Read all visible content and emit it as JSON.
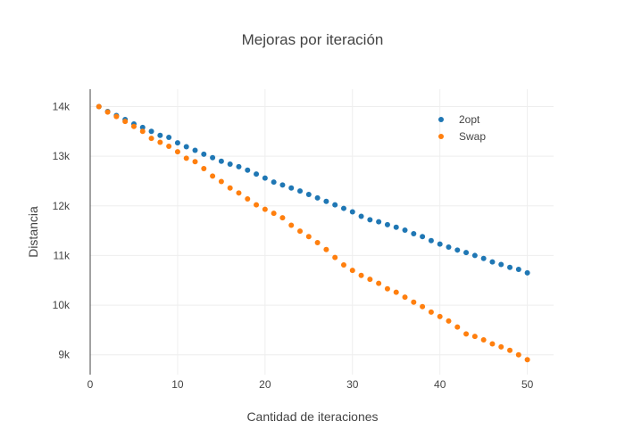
{
  "chart_data": {
    "type": "scatter",
    "title": "Mejoras por iteración",
    "xlabel": "Cantidad de iteraciones",
    "ylabel": "Distancia",
    "xlim": [
      0,
      53
    ],
    "ylim": [
      8600,
      14350
    ],
    "x_ticks": [
      0,
      10,
      20,
      30,
      40,
      50
    ],
    "x_tick_labels": [
      "0",
      "10",
      "20",
      "30",
      "40",
      "50"
    ],
    "y_ticks": [
      9000,
      10000,
      11000,
      12000,
      13000,
      14000
    ],
    "y_tick_labels": [
      "9k",
      "10k",
      "11k",
      "12k",
      "13k",
      "14k"
    ],
    "grid": true,
    "legend_position": "top-right",
    "series": [
      {
        "name": "2opt",
        "color": "#1f77b4",
        "x": [
          1,
          2,
          3,
          4,
          5,
          6,
          7,
          8,
          9,
          10,
          11,
          12,
          13,
          14,
          15,
          16,
          17,
          18,
          19,
          20,
          21,
          22,
          23,
          24,
          25,
          26,
          27,
          28,
          29,
          30,
          31,
          32,
          33,
          34,
          35,
          36,
          37,
          38,
          39,
          40,
          41,
          42,
          43,
          44,
          45,
          46,
          47,
          48,
          49,
          50
        ],
        "y": [
          14000,
          13900,
          13820,
          13740,
          13650,
          13580,
          13500,
          13420,
          13380,
          13270,
          13190,
          13120,
          13040,
          12970,
          12900,
          12840,
          12790,
          12720,
          12640,
          12560,
          12480,
          12420,
          12360,
          12300,
          12230,
          12160,
          12090,
          12020,
          11950,
          11880,
          11790,
          11720,
          11680,
          11620,
          11570,
          11510,
          11440,
          11380,
          11300,
          11230,
          11170,
          11110,
          11060,
          11000,
          10940,
          10870,
          10820,
          10760,
          10720,
          10650
        ]
      },
      {
        "name": "Swap",
        "color": "#ff7f0e",
        "x": [
          1,
          2,
          3,
          4,
          5,
          6,
          7,
          8,
          9,
          10,
          11,
          12,
          13,
          14,
          15,
          16,
          17,
          18,
          19,
          20,
          21,
          22,
          23,
          24,
          25,
          26,
          27,
          28,
          29,
          30,
          31,
          32,
          33,
          34,
          35,
          36,
          37,
          38,
          39,
          40,
          41,
          42,
          43,
          44,
          45,
          46,
          47,
          48,
          49,
          50
        ],
        "y": [
          14000,
          13890,
          13800,
          13700,
          13600,
          13500,
          13360,
          13280,
          13200,
          13090,
          12960,
          12890,
          12750,
          12600,
          12490,
          12360,
          12260,
          12140,
          12020,
          11930,
          11850,
          11760,
          11610,
          11490,
          11380,
          11260,
          11120,
          10960,
          10810,
          10700,
          10600,
          10520,
          10440,
          10330,
          10260,
          10160,
          10060,
          9970,
          9860,
          9770,
          9680,
          9560,
          9420,
          9370,
          9300,
          9220,
          9160,
          9090,
          9000,
          8900
        ]
      }
    ]
  }
}
